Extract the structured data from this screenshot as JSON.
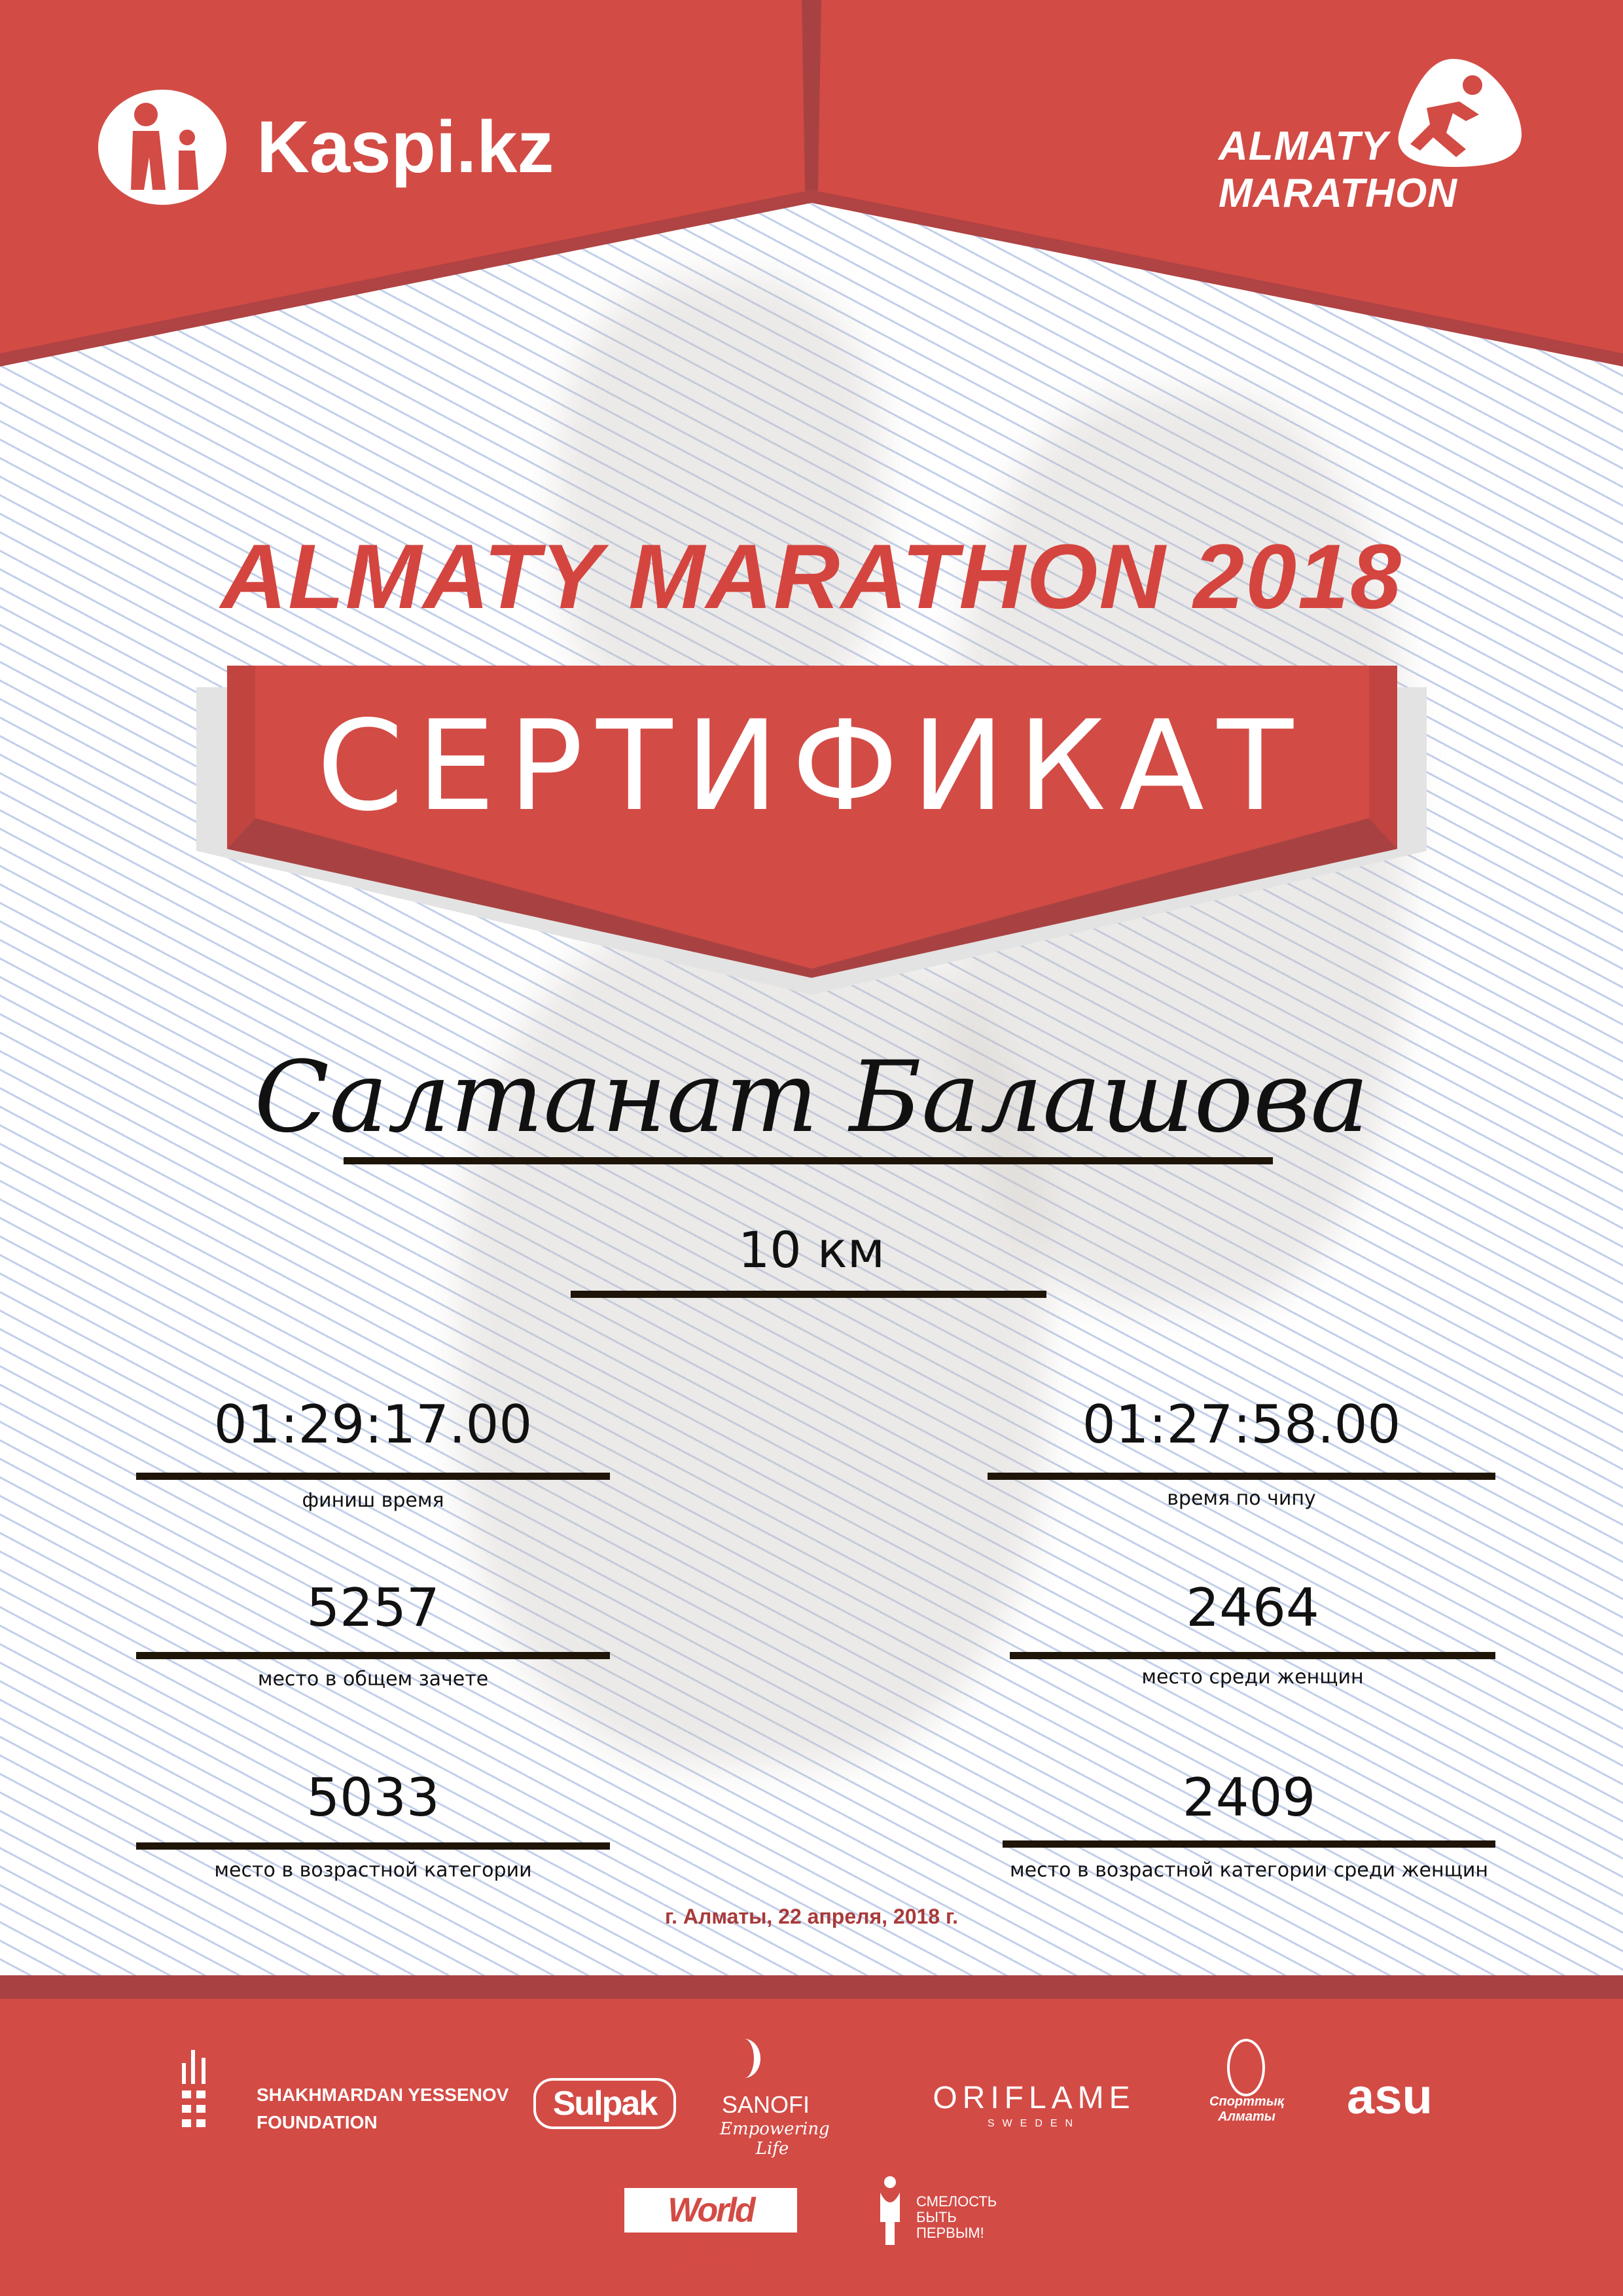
{
  "header": {
    "left_logo": "Kaspi.kz",
    "right_logo_line1": "ALMATY",
    "right_logo_line2": "MARATHON",
    "colors": {
      "red": "#d34b45",
      "dark_red": "#a84242"
    }
  },
  "title": "ALMATY MARATHON 2018",
  "certificate_label": "СЕРТИФИКАТ",
  "participant_name": "Салтанат Балашова",
  "distance": "10 км",
  "results": [
    {
      "value": "01:29:17.00",
      "label": "финиш время"
    },
    {
      "value": "01:27:58.00",
      "label": "время по чипу"
    },
    {
      "value": "5257",
      "label": "место в общем зачете"
    },
    {
      "value": "2464",
      "label": "место среди женщин"
    },
    {
      "value": "5033",
      "label": "место в возрастной категории"
    },
    {
      "value": "2409",
      "label": "место в возрастной категории среди женщин"
    }
  ],
  "date_line": "г. Алматы, 22 апреля, 2018 г.",
  "sponsors": {
    "yessenov_line1": "SHAKHMARDAN YESSENOV",
    "yessenov_line2": "FOUNDATION",
    "sulpak": "Sulpak",
    "sanofi": "SANOFI",
    "sanofi_tagline": "Empowering Life",
    "oriflame": "ORIFLAME",
    "oriflame_sub": "SWEDEN",
    "sport_almaty": "Спорттық Алматы",
    "asu": "asu",
    "worldclass": "World Class",
    "fund_line1": "СМЕЛОСТЬ",
    "fund_line2": "БЫТЬ",
    "fund_line3": "ПЕРВЫМ!"
  }
}
